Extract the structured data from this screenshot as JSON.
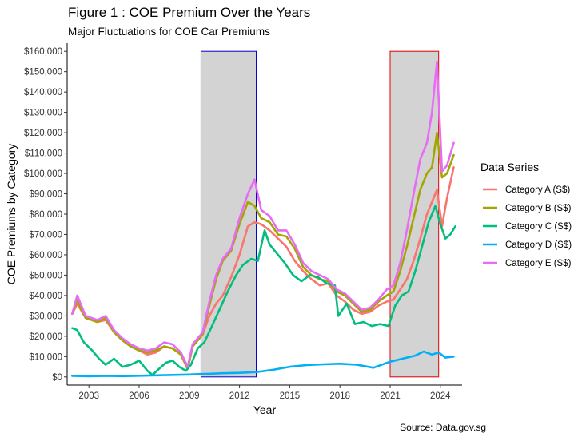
{
  "title": "Figure 1 : COE Premium Over the Years",
  "subtitle": "Major Fluctuations for COE Car Premiums",
  "caption": "Source: Data.gov.sg",
  "chart_data": {
    "type": "line",
    "xlabel": "Year",
    "ylabel": "COE Premiums by Category",
    "xlim": [
      2001.7,
      2025.3
    ],
    "ylim": [
      -4000,
      164000
    ],
    "x_ticks": [
      2003,
      2006,
      2009,
      2012,
      2015,
      2018,
      2021,
      2024
    ],
    "x_tick_labels": [
      "2003",
      "2006",
      "2009",
      "2012",
      "2015",
      "2018",
      "2021",
      "2024"
    ],
    "y_ticks": [
      0,
      10000,
      20000,
      30000,
      40000,
      50000,
      60000,
      70000,
      80000,
      90000,
      100000,
      110000,
      120000,
      130000,
      140000,
      150000,
      160000
    ],
    "y_tick_labels": [
      "$0",
      "$10,000",
      "$20,000",
      "$30,000",
      "$40,000",
      "$50,000",
      "$60,000",
      "$70,000",
      "$80,000",
      "$90,000",
      "$100,000",
      "$110,000",
      "$120,000",
      "$130,000",
      "$140,000",
      "$150,000",
      "$160,000"
    ],
    "grid": false,
    "legend": {
      "title": "Data Series",
      "position": "right"
    },
    "highlight_boxes": [
      {
        "x_range": [
          2009.7,
          2013.0
        ],
        "y_range": [
          0,
          160000
        ],
        "border_color": "#0000cc"
      },
      {
        "x_range": [
          2021.0,
          2023.9
        ],
        "y_range": [
          0,
          160000
        ],
        "border_color": "#dd0000"
      }
    ],
    "series": [
      {
        "name": "Category A (S$)",
        "color": "#F8766D",
        "x": [
          2002.0,
          2002.3,
          2002.8,
          2003.5,
          2004.0,
          2004.5,
          2005.0,
          2005.5,
          2006.0,
          2006.5,
          2007.0,
          2007.5,
          2008.0,
          2008.5,
          2008.9,
          2009.2,
          2009.5,
          2009.8,
          2010.2,
          2010.6,
          2011.0,
          2011.5,
          2012.0,
          2012.5,
          2012.9,
          2013.3,
          2013.8,
          2014.3,
          2014.8,
          2015.3,
          2015.8,
          2016.3,
          2016.8,
          2017.3,
          2017.8,
          2018.3,
          2018.8,
          2019.3,
          2019.8,
          2020.3,
          2020.8,
          2021.2,
          2021.6,
          2022.0,
          2022.4,
          2022.8,
          2023.2,
          2023.5,
          2023.8,
          2024.1,
          2024.4,
          2024.8
        ],
        "values": [
          31000,
          36000,
          29000,
          27000,
          28000,
          22000,
          18000,
          15000,
          13000,
          11000,
          12000,
          15000,
          14000,
          11000,
          4000,
          15000,
          18000,
          21000,
          30000,
          36000,
          40000,
          49000,
          60000,
          74000,
          76000,
          75000,
          72000,
          68000,
          64000,
          57000,
          52000,
          48000,
          45000,
          46000,
          40000,
          37000,
          33000,
          31000,
          32000,
          35000,
          37000,
          38000,
          43000,
          48000,
          57000,
          68000,
          80000,
          86000,
          92000,
          74000,
          88000,
          103000
        ]
      },
      {
        "name": "Category B (S$)",
        "color": "#A3A500",
        "x": [
          2002.0,
          2002.3,
          2002.8,
          2003.5,
          2004.0,
          2004.5,
          2005.0,
          2005.5,
          2006.0,
          2006.5,
          2007.0,
          2007.5,
          2008.0,
          2008.5,
          2008.9,
          2009.2,
          2009.5,
          2009.8,
          2010.2,
          2010.6,
          2011.0,
          2011.5,
          2012.0,
          2012.5,
          2012.9,
          2013.3,
          2013.8,
          2014.3,
          2014.8,
          2015.3,
          2015.8,
          2016.3,
          2016.8,
          2017.3,
          2017.8,
          2018.3,
          2018.8,
          2019.3,
          2019.8,
          2020.3,
          2020.8,
          2021.2,
          2021.6,
          2022.0,
          2022.4,
          2022.8,
          2023.2,
          2023.5,
          2023.8,
          2024.1,
          2024.4,
          2024.8
        ],
        "values": [
          31000,
          38000,
          29000,
          27000,
          29000,
          22000,
          18000,
          15000,
          13000,
          12000,
          13000,
          15000,
          14000,
          11000,
          4000,
          15000,
          18000,
          21000,
          35000,
          48000,
          57000,
          62000,
          75000,
          86000,
          84000,
          78000,
          76000,
          70000,
          69000,
          63000,
          54000,
          50000,
          48000,
          47000,
          42000,
          40000,
          36000,
          32000,
          33000,
          37000,
          40000,
          42000,
          52000,
          64000,
          78000,
          92000,
          100000,
          103000,
          120000,
          98000,
          100000,
          109000
        ]
      },
      {
        "name": "Category C (S$)",
        "color": "#00BF7D",
        "x": [
          2002.0,
          2002.3,
          2002.7,
          2003.2,
          2003.6,
          2004.0,
          2004.5,
          2005.0,
          2005.5,
          2006.0,
          2006.5,
          2006.8,
          2007.2,
          2007.6,
          2008.0,
          2008.4,
          2008.8,
          2009.1,
          2009.5,
          2009.9,
          2010.3,
          2010.8,
          2011.3,
          2011.8,
          2012.2,
          2012.7,
          2013.1,
          2013.5,
          2013.8,
          2014.2,
          2014.7,
          2015.2,
          2015.7,
          2016.2,
          2016.7,
          2017.2,
          2017.7,
          2017.9,
          2018.4,
          2018.9,
          2019.4,
          2019.9,
          2020.4,
          2020.9,
          2021.3,
          2021.7,
          2022.1,
          2022.5,
          2022.9,
          2023.3,
          2023.7,
          2024.0,
          2024.3,
          2024.6,
          2024.9
        ],
        "values": [
          24000,
          23000,
          17000,
          13000,
          9000,
          6000,
          9000,
          5000,
          6000,
          8000,
          3000,
          1000,
          4000,
          7000,
          8000,
          5000,
          3000,
          6000,
          14000,
          17000,
          24000,
          33000,
          42000,
          50000,
          55000,
          58000,
          57000,
          72000,
          65000,
          61000,
          56000,
          50000,
          47000,
          50000,
          49000,
          46000,
          45000,
          30000,
          36000,
          26000,
          27000,
          25000,
          26000,
          25000,
          35000,
          40000,
          42000,
          52000,
          64000,
          76000,
          84000,
          75000,
          68000,
          70000,
          74000
        ]
      },
      {
        "name": "Category D (S$)",
        "color": "#00B0F6",
        "x": [
          2002.0,
          2003.0,
          2004.0,
          2005.0,
          2006.0,
          2007.0,
          2008.0,
          2009.0,
          2010.0,
          2011.0,
          2012.0,
          2013.0,
          2014.0,
          2015.0,
          2016.0,
          2017.0,
          2018.0,
          2019.0,
          2020.0,
          2021.0,
          2021.5,
          2022.0,
          2022.5,
          2023.0,
          2023.5,
          2023.9,
          2024.3,
          2024.8
        ],
        "values": [
          500,
          300,
          500,
          400,
          600,
          800,
          1000,
          1200,
          1500,
          1800,
          2000,
          2400,
          3500,
          5000,
          5800,
          6200,
          6500,
          6000,
          4500,
          7500,
          8500,
          9500,
          10500,
          12500,
          11000,
          12000,
          9500,
          10000
        ]
      },
      {
        "name": "Category E (S$)",
        "color": "#E76BF3",
        "x": [
          2002.0,
          2002.3,
          2002.8,
          2003.5,
          2004.0,
          2004.5,
          2005.0,
          2005.5,
          2006.0,
          2006.5,
          2007.0,
          2007.5,
          2008.0,
          2008.5,
          2008.9,
          2009.2,
          2009.5,
          2009.8,
          2010.2,
          2010.6,
          2011.0,
          2011.5,
          2012.0,
          2012.5,
          2012.9,
          2013.3,
          2013.8,
          2014.3,
          2014.8,
          2015.3,
          2015.8,
          2016.3,
          2016.8,
          2017.3,
          2017.8,
          2018.3,
          2018.8,
          2019.3,
          2019.8,
          2020.3,
          2020.8,
          2021.2,
          2021.6,
          2022.0,
          2022.4,
          2022.8,
          2023.2,
          2023.5,
          2023.8,
          2024.1,
          2024.4,
          2024.8
        ],
        "values": [
          31000,
          40000,
          30000,
          28000,
          30000,
          23000,
          19000,
          16000,
          14000,
          13000,
          14000,
          17000,
          16000,
          12000,
          5000,
          16000,
          19000,
          22000,
          37000,
          50000,
          58000,
          63000,
          78000,
          90000,
          97000,
          82000,
          79000,
          72000,
          72000,
          65000,
          56000,
          52000,
          50000,
          48000,
          43000,
          41000,
          37000,
          33000,
          34000,
          38000,
          43000,
          45000,
          56000,
          72000,
          90000,
          107000,
          115000,
          130000,
          155000,
          101000,
          104000,
          115000
        ]
      }
    ]
  }
}
